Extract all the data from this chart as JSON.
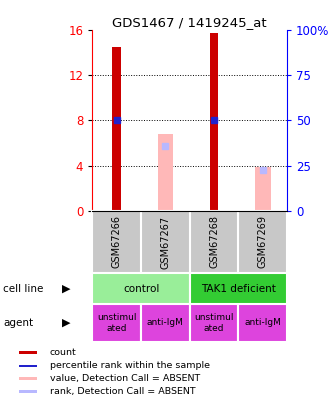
{
  "title": "GDS1467 / 1419245_at",
  "samples": [
    "GSM67266",
    "GSM67267",
    "GSM67268",
    "GSM67269"
  ],
  "bar_counts": [
    14.5,
    null,
    15.8,
    null
  ],
  "bar_ranks": [
    8.0,
    null,
    8.0,
    null
  ],
  "bar_absent_value": [
    null,
    6.8,
    null,
    3.9
  ],
  "bar_absent_rank_val": [
    null,
    5.7,
    null,
    3.6
  ],
  "ylim": [
    0,
    16
  ],
  "yticks_left": [
    0,
    4,
    8,
    12,
    16
  ],
  "yticks_right_vals": [
    0,
    4,
    8,
    12,
    16
  ],
  "ytick_labels_right": [
    "0",
    "25",
    "50",
    "75",
    "100%"
  ],
  "color_count": "#cc0000",
  "color_rank": "#2222cc",
  "color_absent_value": "#ffb8b8",
  "color_absent_rank": "#b8b8ff",
  "cell_line_labels": [
    "control",
    "TAK1 deficient"
  ],
  "cell_line_spans": [
    [
      0,
      2
    ],
    [
      2,
      4
    ]
  ],
  "cell_line_color_light": "#99ee99",
  "cell_line_color_dark": "#33cc33",
  "agent_labels": [
    "unstimul\nated",
    "anti-IgM",
    "unstimul\nated",
    "anti-IgM"
  ],
  "agent_color": "#dd44dd",
  "bg_color": "#c8c8c8",
  "legend_items": [
    {
      "color": "#cc0000",
      "label": "count"
    },
    {
      "color": "#2222cc",
      "label": "percentile rank within the sample"
    },
    {
      "color": "#ffb8b8",
      "label": "value, Detection Call = ABSENT"
    },
    {
      "color": "#b8b8ff",
      "label": "rank, Detection Call = ABSENT"
    }
  ]
}
